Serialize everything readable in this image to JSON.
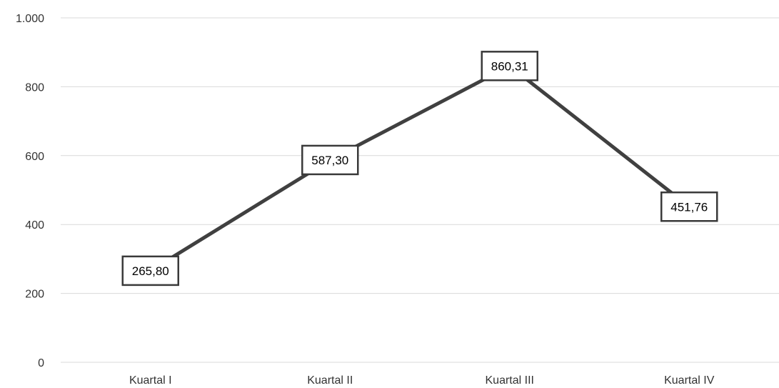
{
  "chart_data": {
    "type": "line",
    "categories": [
      "Kuartal I",
      "Kuartal II",
      "Kuartal III",
      "Kuartal IV"
    ],
    "series": [
      {
        "values": [
          265.8,
          587.3,
          860.31,
          451.76
        ],
        "data_labels": [
          "265,80",
          "587,30",
          "860,31",
          "451,76"
        ],
        "color": "#404040"
      }
    ],
    "ylim": [
      0,
      1000
    ],
    "yticks": [
      0,
      200,
      400,
      600,
      800,
      1000
    ],
    "ytick_labels": [
      "0",
      "200",
      "400",
      "600",
      "800",
      "1.000"
    ],
    "title": "",
    "xlabel": "",
    "ylabel": "",
    "grid": true,
    "legend": "none"
  },
  "colors": {
    "gridline": "#d9d9d9",
    "line": "#404040",
    "text": "#333333"
  }
}
